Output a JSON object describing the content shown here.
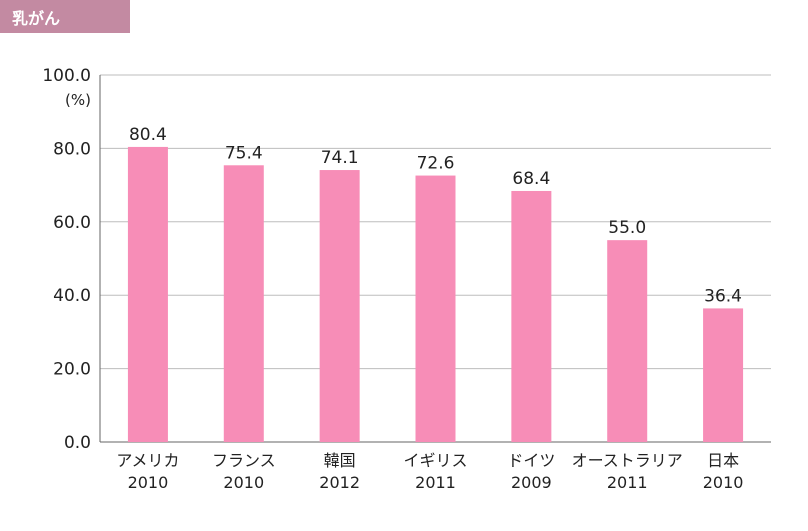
{
  "header": {
    "tag_label": "乳がん",
    "tag_color": "#c38aa2"
  },
  "chart_data": {
    "type": "bar",
    "categories": [
      [
        "アメリカ",
        "2010"
      ],
      [
        "フランス",
        "2010"
      ],
      [
        "韓国",
        "2012"
      ],
      [
        "イギリス",
        "2011"
      ],
      [
        "ドイツ",
        "2009"
      ],
      [
        "オーストラリア",
        "2011"
      ],
      [
        "日本",
        "2010"
      ]
    ],
    "values": [
      80.4,
      75.4,
      74.1,
      72.6,
      68.4,
      55.0,
      36.4
    ],
    "value_labels": [
      "80.4",
      "75.4",
      "74.1",
      "72.6",
      "68.4",
      "55.0",
      "36.4"
    ],
    "ylim": [
      0,
      100
    ],
    "yticks": [
      "0.0",
      "20.0",
      "40.0",
      "60.0",
      "80.0",
      "100.0"
    ],
    "y_unit": "(%)",
    "bar_color": "#f78db7",
    "grid": true
  }
}
